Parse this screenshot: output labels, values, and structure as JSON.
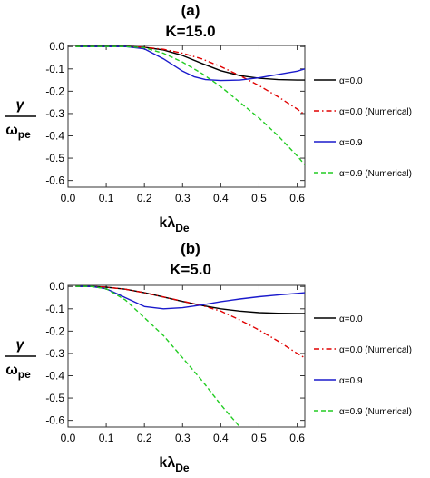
{
  "chart_data": [
    {
      "type": "line",
      "panel_label": "(a)",
      "title": "K=15.0",
      "xlabel_main": "kλ",
      "xlabel_sub": "De",
      "ylabel_num": "γ",
      "ylabel_den_main": "ω",
      "ylabel_den_sub": "pe",
      "xlim": [
        0,
        0.62
      ],
      "ylim": [
        -0.63,
        0.005
      ],
      "xticks": [
        "0.0",
        "0.1",
        "0.2",
        "0.3",
        "0.4",
        "0.5",
        "0.6"
      ],
      "xtick_values": [
        0,
        0.1,
        0.2,
        0.3,
        0.4,
        0.5,
        0.6
      ],
      "yticks": [
        "0.0",
        "-0.1",
        "-0.2",
        "-0.3",
        "-0.4",
        "-0.5",
        "-0.6"
      ],
      "ytick_values": [
        0,
        -0.1,
        -0.2,
        -0.3,
        -0.4,
        -0.5,
        -0.6
      ],
      "legend_position": "right",
      "series": [
        {
          "name": "α=0.0",
          "color": "#000000",
          "dash": "solid",
          "x": [
            0.02,
            0.1,
            0.15,
            0.2,
            0.25,
            0.3,
            0.35,
            0.4,
            0.45,
            0.5,
            0.55,
            0.6,
            0.62
          ],
          "y": [
            0,
            0,
            0,
            -0.003,
            -0.015,
            -0.04,
            -0.075,
            -0.108,
            -0.13,
            -0.142,
            -0.148,
            -0.15,
            -0.15
          ]
        },
        {
          "name": "α=0.0 (Numerical)",
          "color": "#e00000",
          "dash": "dashdot",
          "x": [
            0.02,
            0.1,
            0.15,
            0.2,
            0.25,
            0.3,
            0.35,
            0.4,
            0.45,
            0.5,
            0.55,
            0.6,
            0.62
          ],
          "y": [
            0,
            0,
            0,
            -0.003,
            -0.012,
            -0.03,
            -0.055,
            -0.09,
            -0.13,
            -0.175,
            -0.225,
            -0.28,
            -0.305
          ]
        },
        {
          "name": "α=0.9",
          "color": "#1a1acc",
          "dash": "solid",
          "x": [
            0.02,
            0.1,
            0.15,
            0.2,
            0.25,
            0.3,
            0.33,
            0.36,
            0.4,
            0.45,
            0.5,
            0.55,
            0.6,
            0.62
          ],
          "y": [
            0,
            0,
            0,
            -0.01,
            -0.055,
            -0.11,
            -0.135,
            -0.148,
            -0.152,
            -0.15,
            -0.14,
            -0.125,
            -0.11,
            -0.1
          ]
        },
        {
          "name": "α=0.9 (Numerical)",
          "color": "#22cc22",
          "dash": "dashed",
          "x": [
            0.02,
            0.1,
            0.15,
            0.2,
            0.25,
            0.3,
            0.35,
            0.4,
            0.45,
            0.5,
            0.55,
            0.6,
            0.62
          ],
          "y": [
            0,
            0,
            0,
            -0.005,
            -0.03,
            -0.07,
            -0.12,
            -0.18,
            -0.25,
            -0.32,
            -0.4,
            -0.49,
            -0.53
          ]
        }
      ]
    },
    {
      "type": "line",
      "panel_label": "(b)",
      "title": "K=5.0",
      "xlabel_main": "kλ",
      "xlabel_sub": "De",
      "ylabel_num": "γ",
      "ylabel_den_main": "ω",
      "ylabel_den_sub": "pe",
      "xlim": [
        0,
        0.62
      ],
      "ylim": [
        -0.63,
        0.005
      ],
      "xticks": [
        "0.0",
        "0.1",
        "0.2",
        "0.3",
        "0.4",
        "0.5",
        "0.6"
      ],
      "xtick_values": [
        0,
        0.1,
        0.2,
        0.3,
        0.4,
        0.5,
        0.6
      ],
      "yticks": [
        "0.0",
        "-0.1",
        "-0.2",
        "-0.3",
        "-0.4",
        "-0.5",
        "-0.6"
      ],
      "ytick_values": [
        0,
        -0.1,
        -0.2,
        -0.3,
        -0.4,
        -0.5,
        -0.6
      ],
      "legend_position": "right",
      "series": [
        {
          "name": "α=0.0",
          "color": "#000000",
          "dash": "solid",
          "x": [
            0.02,
            0.06,
            0.1,
            0.15,
            0.2,
            0.25,
            0.3,
            0.35,
            0.4,
            0.45,
            0.5,
            0.55,
            0.6,
            0.62
          ],
          "y": [
            0,
            0,
            -0.003,
            -0.012,
            -0.028,
            -0.047,
            -0.067,
            -0.085,
            -0.1,
            -0.11,
            -0.117,
            -0.12,
            -0.121,
            -0.121
          ]
        },
        {
          "name": "α=0.0 (Numerical)",
          "color": "#e00000",
          "dash": "dashdot",
          "x": [
            0.02,
            0.06,
            0.1,
            0.15,
            0.2,
            0.25,
            0.3,
            0.35,
            0.4,
            0.45,
            0.5,
            0.55,
            0.6,
            0.62
          ],
          "y": [
            0,
            0,
            -0.003,
            -0.012,
            -0.028,
            -0.047,
            -0.066,
            -0.085,
            -0.11,
            -0.15,
            -0.195,
            -0.245,
            -0.3,
            -0.32
          ]
        },
        {
          "name": "α=0.9",
          "color": "#1a1acc",
          "dash": "solid",
          "x": [
            0.02,
            0.06,
            0.1,
            0.15,
            0.2,
            0.25,
            0.3,
            0.35,
            0.4,
            0.45,
            0.5,
            0.55,
            0.6,
            0.62
          ],
          "y": [
            0,
            0,
            -0.01,
            -0.05,
            -0.09,
            -0.1,
            -0.095,
            -0.083,
            -0.068,
            -0.056,
            -0.046,
            -0.038,
            -0.031,
            -0.028
          ]
        },
        {
          "name": "α=0.9 (Numerical)",
          "color": "#22cc22",
          "dash": "dashed",
          "x": [
            0.02,
            0.06,
            0.1,
            0.15,
            0.2,
            0.25,
            0.3,
            0.35,
            0.4,
            0.44,
            0.45
          ],
          "y": [
            0,
            0,
            -0.01,
            -0.06,
            -0.14,
            -0.22,
            -0.32,
            -0.42,
            -0.53,
            -0.61,
            -0.63
          ]
        }
      ]
    }
  ]
}
